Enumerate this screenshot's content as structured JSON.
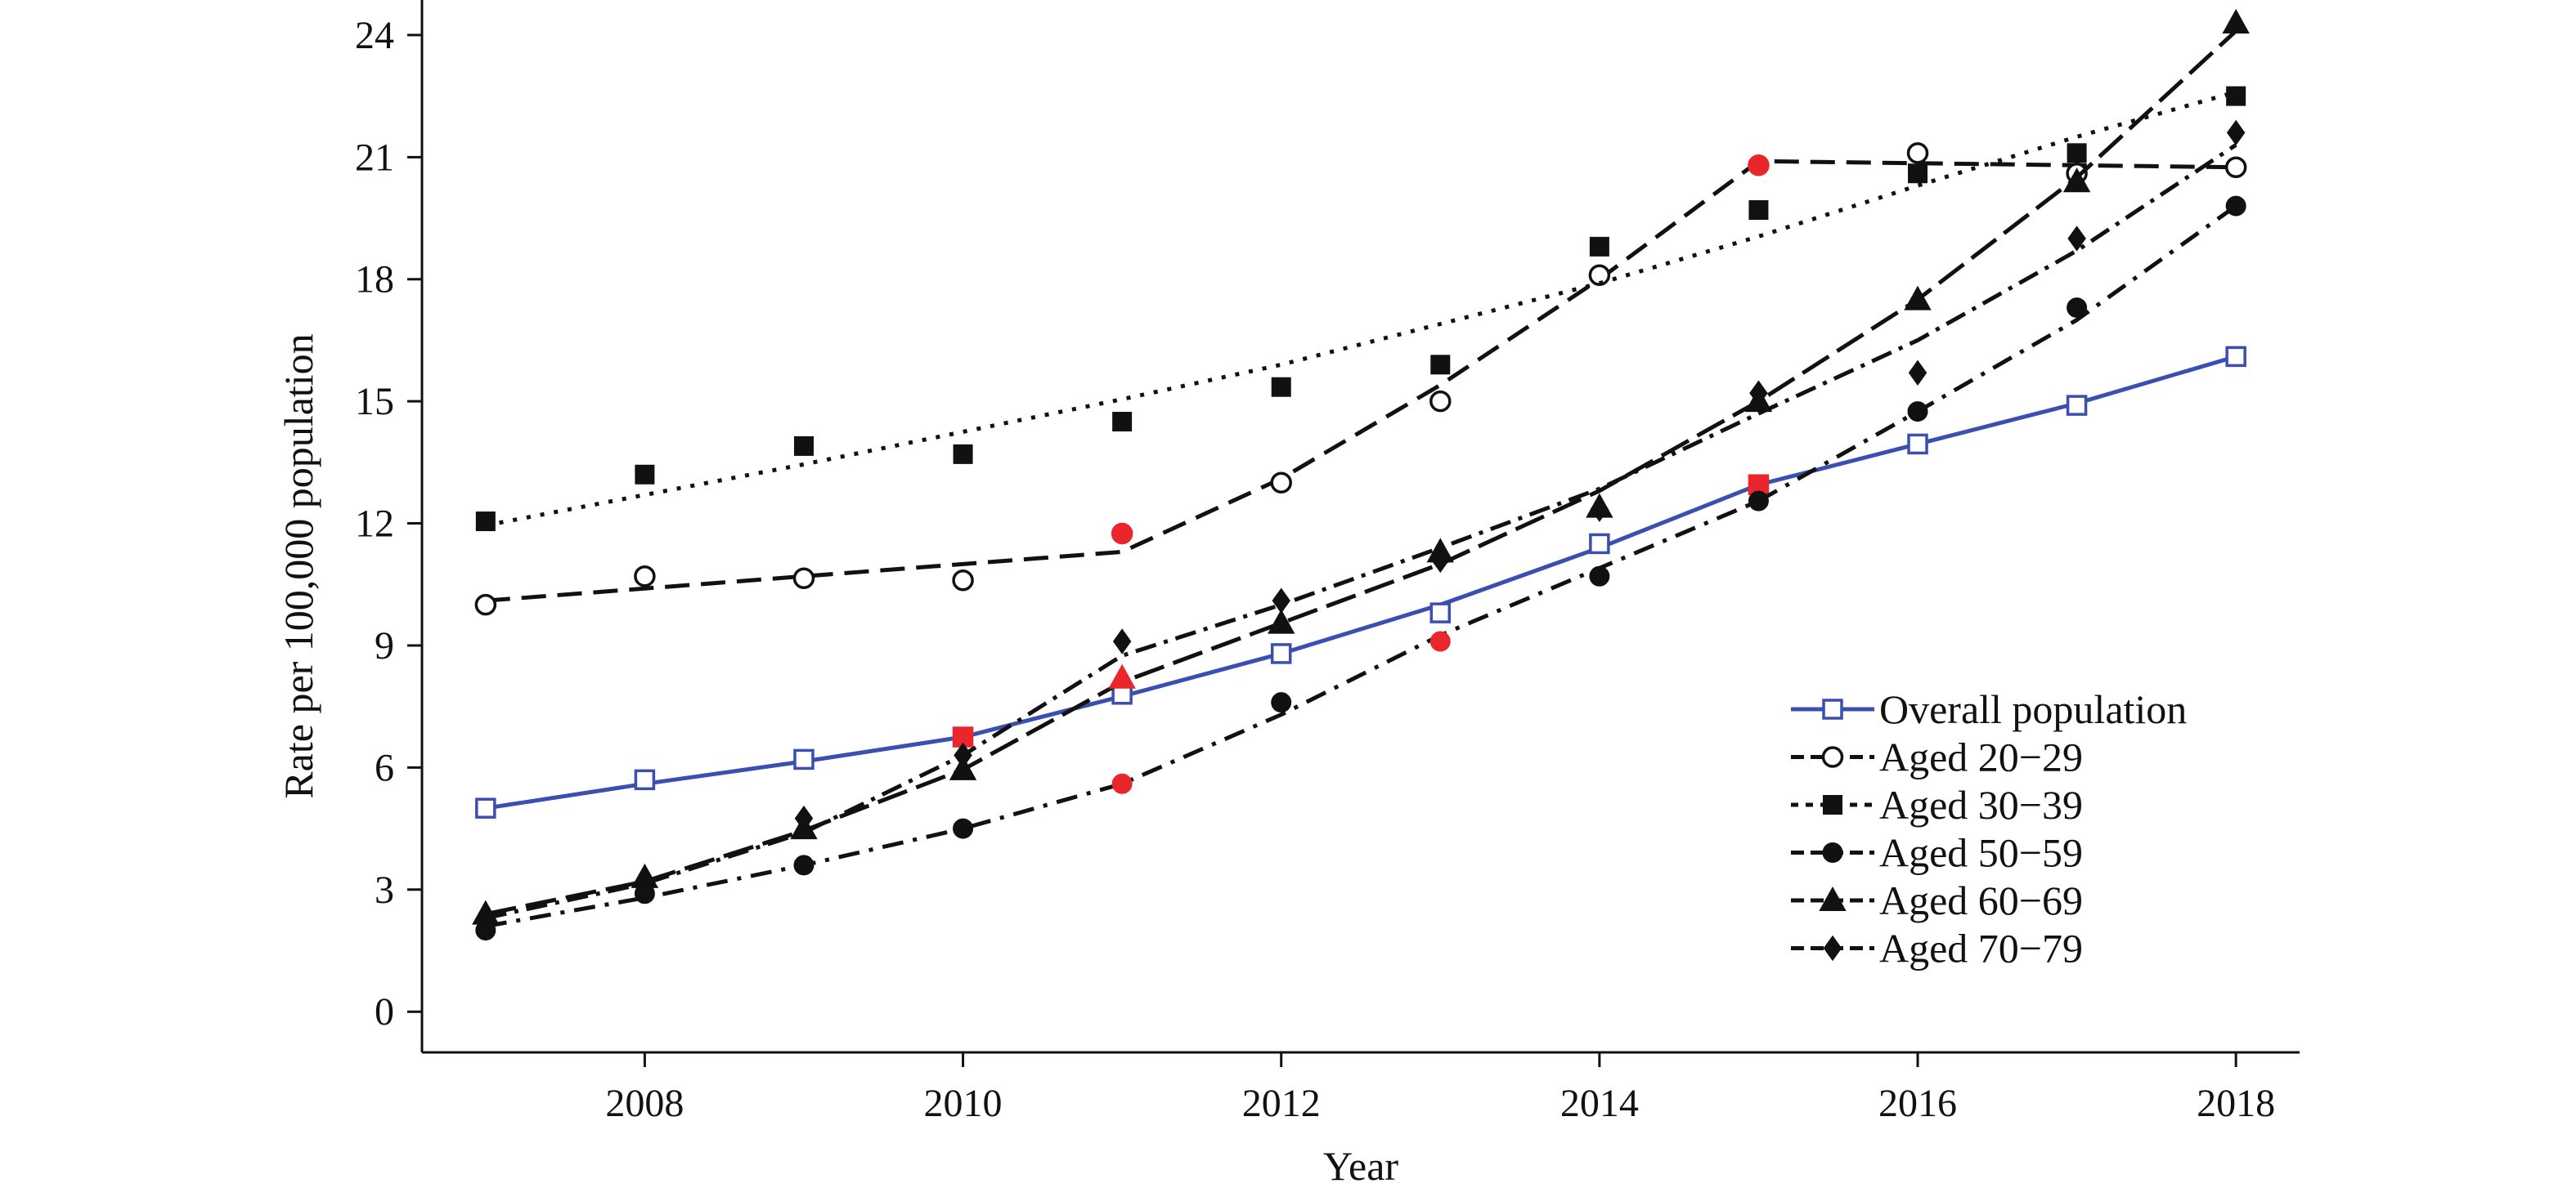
{
  "chart_data": {
    "type": "line",
    "title": "",
    "xlabel": "Year",
    "ylabel": "Rate per 100,000 population",
    "x_ticks": [
      2008,
      2010,
      2012,
      2014,
      2016,
      2018
    ],
    "y_ticks": [
      0,
      3,
      6,
      9,
      12,
      15,
      18,
      21,
      24
    ],
    "xlim": [
      2006.6,
      2018.4
    ],
    "ylim": [
      -1,
      24.5
    ],
    "grid": false,
    "legend_position": "bottom-right",
    "x": [
      2007,
      2008,
      2009,
      2010,
      2011,
      2012,
      2013,
      2014,
      2015,
      2016,
      2017,
      2018
    ],
    "highlight_color": "#e8262b",
    "series": [
      {
        "name": "Overall population",
        "color": "#3a4fb0",
        "marker": "open-square",
        "values": [
          5.0,
          5.7,
          6.2,
          6.75,
          7.8,
          8.8,
          9.8,
          11.5,
          12.95,
          13.95,
          14.9,
          16.1
        ],
        "trend": [
          5.0,
          5.6,
          6.15,
          6.75,
          7.75,
          8.8,
          10.0,
          11.4,
          12.95,
          13.95,
          14.95,
          16.1
        ],
        "highlighted_years": [
          2010,
          2015
        ]
      },
      {
        "name": "Aged 20−29",
        "color": "#111111",
        "marker": "open-circle",
        "values": [
          10.0,
          10.7,
          10.65,
          10.6,
          11.75,
          13.0,
          15.0,
          18.1,
          20.8,
          21.1,
          20.6,
          20.75
        ],
        "trend": [
          10.1,
          10.4,
          10.7,
          11.0,
          11.3,
          13.1,
          15.4,
          18.0,
          20.9,
          20.85,
          20.8,
          20.75
        ],
        "highlighted_years": [
          2011,
          2015
        ]
      },
      {
        "name": "Aged 30−39",
        "color": "#111111",
        "marker": "filled-square",
        "values": [
          12.05,
          13.2,
          13.9,
          13.7,
          14.5,
          15.35,
          15.9,
          18.8,
          19.7,
          20.6,
          21.1,
          22.5
        ],
        "trend": [
          11.95,
          12.7,
          13.45,
          14.25,
          15.05,
          15.9,
          16.9,
          17.9,
          19.05,
          20.3,
          21.5,
          22.6
        ],
        "highlighted_years": []
      },
      {
        "name": "Aged 50−59",
        "color": "#111111",
        "marker": "filled-circle",
        "values": [
          2.0,
          2.9,
          3.6,
          4.5,
          5.6,
          7.6,
          9.1,
          10.7,
          12.55,
          14.75,
          17.3,
          19.8
        ],
        "trend": [
          2.1,
          2.8,
          3.6,
          4.5,
          5.6,
          7.3,
          9.25,
          10.9,
          12.55,
          14.75,
          17.0,
          19.8
        ],
        "highlighted_years": [
          2011,
          2013
        ]
      },
      {
        "name": "Aged 60−69",
        "color": "#111111",
        "marker": "filled-triangle",
        "values": [
          2.4,
          3.3,
          4.5,
          5.95,
          8.2,
          9.55,
          11.3,
          12.4,
          15.0,
          17.5,
          20.4,
          24.3
        ],
        "trend": [
          2.4,
          3.2,
          4.45,
          5.95,
          8.1,
          9.55,
          11.0,
          12.8,
          15.0,
          17.5,
          20.5,
          24.1
        ],
        "highlighted_years": [
          2011
        ]
      },
      {
        "name": "Aged 70−79",
        "color": "#111111",
        "marker": "filled-diamond",
        "values": [
          2.25,
          3.15,
          4.75,
          6.3,
          9.1,
          10.1,
          11.1,
          12.35,
          15.2,
          15.7,
          19.0,
          21.6
        ],
        "trend": [
          2.3,
          3.15,
          4.4,
          6.3,
          8.75,
          10.0,
          11.4,
          12.85,
          14.7,
          16.5,
          18.7,
          21.3
        ],
        "highlighted_years": []
      }
    ]
  }
}
